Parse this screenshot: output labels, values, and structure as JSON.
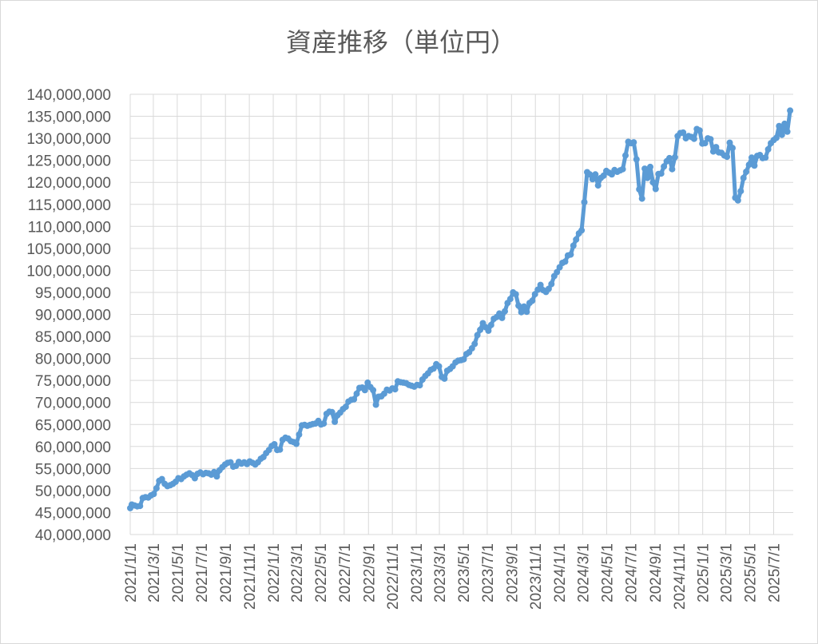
{
  "chart_data": {
    "type": "line",
    "title": "資産推移（単位円）",
    "xlabel": "",
    "ylabel": "",
    "ylim": [
      40000000,
      140000000
    ],
    "y_tick_step": 5000000,
    "y_tick_labels": [
      "40,000,000",
      "45,000,000",
      "50,000,000",
      "55,000,000",
      "60,000,000",
      "65,000,000",
      "70,000,000",
      "75,000,000",
      "80,000,000",
      "85,000,000",
      "90,000,000",
      "95,000,000",
      "100,000,000",
      "105,000,000",
      "110,000,000",
      "115,000,000",
      "120,000,000",
      "125,000,000",
      "130,000,000",
      "135,000,000",
      "140,000,000"
    ],
    "xlim": [
      "2021-01-01",
      "2025-08-20"
    ],
    "x_tick_labels": [
      "2021/1/1",
      "2021/3/1",
      "2021/5/1",
      "2021/7/1",
      "2021/9/1",
      "2021/11/1",
      "2022/1/1",
      "2022/3/1",
      "2022/5/1",
      "2022/7/1",
      "2022/9/1",
      "2022/11/1",
      "2023/1/1",
      "2023/3/1",
      "2023/5/1",
      "2023/7/1",
      "2023/9/1",
      "2023/11/1",
      "2024/1/1",
      "2024/3/1",
      "2024/5/1",
      "2024/7/1",
      "2024/9/1",
      "2024/11/1",
      "2025/1/1",
      "2025/3/1",
      "2025/5/1",
      "2025/7/1"
    ],
    "grid": true,
    "legend": "none",
    "series": [
      {
        "color": "#5b9bd5",
        "points": [
          [
            "2021-01-01",
            46000000
          ],
          [
            "2021-01-05",
            46800000
          ],
          [
            "2021-01-12",
            46600000
          ],
          [
            "2021-01-19",
            46400000
          ],
          [
            "2021-01-26",
            46500000
          ],
          [
            "2021-02-02",
            48300000
          ],
          [
            "2021-02-09",
            48500000
          ],
          [
            "2021-02-16",
            48400000
          ],
          [
            "2021-02-23",
            48900000
          ],
          [
            "2021-03-02",
            49200000
          ],
          [
            "2021-03-09",
            50500000
          ],
          [
            "2021-03-16",
            52200000
          ],
          [
            "2021-03-23",
            52600000
          ],
          [
            "2021-03-30",
            51500000
          ],
          [
            "2021-04-06",
            51000000
          ],
          [
            "2021-04-13",
            51200000
          ],
          [
            "2021-04-20",
            51500000
          ],
          [
            "2021-04-27",
            52000000
          ],
          [
            "2021-05-04",
            52800000
          ],
          [
            "2021-05-11",
            52600000
          ],
          [
            "2021-05-18",
            53200000
          ],
          [
            "2021-05-25",
            53600000
          ],
          [
            "2021-06-01",
            53900000
          ],
          [
            "2021-06-08",
            53500000
          ],
          [
            "2021-06-15",
            52800000
          ],
          [
            "2021-06-22",
            53800000
          ],
          [
            "2021-06-29",
            54100000
          ],
          [
            "2021-07-06",
            53700000
          ],
          [
            "2021-07-13",
            54000000
          ],
          [
            "2021-07-20",
            53900000
          ],
          [
            "2021-07-27",
            53600000
          ],
          [
            "2021-08-03",
            54200000
          ],
          [
            "2021-08-10",
            53200000
          ],
          [
            "2021-08-17",
            54600000
          ],
          [
            "2021-08-24",
            55300000
          ],
          [
            "2021-08-31",
            55900000
          ],
          [
            "2021-09-07",
            56300000
          ],
          [
            "2021-09-14",
            56400000
          ],
          [
            "2021-09-21",
            55400000
          ],
          [
            "2021-09-28",
            55600000
          ],
          [
            "2021-10-05",
            56500000
          ],
          [
            "2021-10-12",
            56100000
          ],
          [
            "2021-10-19",
            56400000
          ],
          [
            "2021-10-26",
            56000000
          ],
          [
            "2021-11-02",
            56600000
          ],
          [
            "2021-11-09",
            56300000
          ],
          [
            "2021-11-16",
            55900000
          ],
          [
            "2021-11-23",
            56400000
          ],
          [
            "2021-11-30",
            57200000
          ],
          [
            "2021-12-07",
            57600000
          ],
          [
            "2021-12-14",
            58500000
          ],
          [
            "2021-12-21",
            59200000
          ],
          [
            "2021-12-28",
            60100000
          ],
          [
            "2022-01-04",
            60500000
          ],
          [
            "2022-01-11",
            59200000
          ],
          [
            "2022-01-18",
            59300000
          ],
          [
            "2022-01-25",
            61500000
          ],
          [
            "2022-02-01",
            62000000
          ],
          [
            "2022-02-08",
            61800000
          ],
          [
            "2022-02-15",
            61200000
          ],
          [
            "2022-02-22",
            61000000
          ],
          [
            "2022-03-01",
            60600000
          ],
          [
            "2022-03-08",
            62700000
          ],
          [
            "2022-03-15",
            64800000
          ],
          [
            "2022-03-22",
            64900000
          ],
          [
            "2022-03-29",
            64700000
          ],
          [
            "2022-04-05",
            64900000
          ],
          [
            "2022-04-12",
            65100000
          ],
          [
            "2022-04-19",
            65200000
          ],
          [
            "2022-04-26",
            65800000
          ],
          [
            "2022-05-03",
            65000000
          ],
          [
            "2022-05-10",
            65200000
          ],
          [
            "2022-05-17",
            67400000
          ],
          [
            "2022-05-24",
            67900000
          ],
          [
            "2022-05-31",
            67800000
          ],
          [
            "2022-06-07",
            65600000
          ],
          [
            "2022-06-14",
            67100000
          ],
          [
            "2022-06-21",
            67700000
          ],
          [
            "2022-06-28",
            68500000
          ],
          [
            "2022-07-05",
            69000000
          ],
          [
            "2022-07-12",
            70200000
          ],
          [
            "2022-07-19",
            70600000
          ],
          [
            "2022-07-26",
            70700000
          ],
          [
            "2022-08-02",
            72000000
          ],
          [
            "2022-08-09",
            73300000
          ],
          [
            "2022-08-16",
            73400000
          ],
          [
            "2022-08-23",
            72800000
          ],
          [
            "2022-08-30",
            74500000
          ],
          [
            "2022-09-06",
            73500000
          ],
          [
            "2022-09-13",
            72800000
          ],
          [
            "2022-09-20",
            69500000
          ],
          [
            "2022-09-27",
            71300000
          ],
          [
            "2022-10-04",
            71400000
          ],
          [
            "2022-10-11",
            72000000
          ],
          [
            "2022-10-18",
            72900000
          ],
          [
            "2022-10-25",
            72700000
          ],
          [
            "2022-11-01",
            73200000
          ],
          [
            "2022-11-08",
            73000000
          ],
          [
            "2022-11-15",
            74800000
          ],
          [
            "2022-11-22",
            74600000
          ],
          [
            "2022-11-29",
            74500000
          ],
          [
            "2022-12-06",
            74400000
          ],
          [
            "2022-12-13",
            74000000
          ],
          [
            "2022-12-20",
            73800000
          ],
          [
            "2022-12-27",
            73600000
          ],
          [
            "2023-01-03",
            74000000
          ],
          [
            "2023-01-10",
            73900000
          ],
          [
            "2023-01-17",
            75200000
          ],
          [
            "2023-01-24",
            76000000
          ],
          [
            "2023-01-31",
            76600000
          ],
          [
            "2023-02-07",
            77400000
          ],
          [
            "2023-02-14",
            77700000
          ],
          [
            "2023-02-21",
            78700000
          ],
          [
            "2023-02-28",
            78200000
          ],
          [
            "2023-03-07",
            75800000
          ],
          [
            "2023-03-14",
            75400000
          ],
          [
            "2023-03-21",
            77200000
          ],
          [
            "2023-03-28",
            77600000
          ],
          [
            "2023-04-04",
            78200000
          ],
          [
            "2023-04-11",
            79100000
          ],
          [
            "2023-04-18",
            79500000
          ],
          [
            "2023-04-25",
            79600000
          ],
          [
            "2023-05-02",
            79800000
          ],
          [
            "2023-05-09",
            81000000
          ],
          [
            "2023-05-16",
            81400000
          ],
          [
            "2023-05-23",
            82300000
          ],
          [
            "2023-05-30",
            83300000
          ],
          [
            "2023-06-06",
            85300000
          ],
          [
            "2023-06-13",
            86500000
          ],
          [
            "2023-06-20",
            88000000
          ],
          [
            "2023-06-27",
            87100000
          ],
          [
            "2023-07-04",
            86300000
          ],
          [
            "2023-07-11",
            87600000
          ],
          [
            "2023-07-18",
            89000000
          ],
          [
            "2023-07-25",
            89400000
          ],
          [
            "2023-08-01",
            90200000
          ],
          [
            "2023-08-08",
            89200000
          ],
          [
            "2023-08-15",
            90700000
          ],
          [
            "2023-08-22",
            92600000
          ],
          [
            "2023-08-29",
            93500000
          ],
          [
            "2023-09-05",
            95000000
          ],
          [
            "2023-09-12",
            94600000
          ],
          [
            "2023-09-19",
            92000000
          ],
          [
            "2023-09-26",
            90500000
          ],
          [
            "2023-10-03",
            91800000
          ],
          [
            "2023-10-10",
            90600000
          ],
          [
            "2023-10-17",
            92600000
          ],
          [
            "2023-10-24",
            93100000
          ],
          [
            "2023-10-31",
            94600000
          ],
          [
            "2023-11-07",
            95600000
          ],
          [
            "2023-11-14",
            96700000
          ],
          [
            "2023-11-21",
            95500000
          ],
          [
            "2023-11-28",
            95100000
          ],
          [
            "2023-12-05",
            95800000
          ],
          [
            "2023-12-12",
            96900000
          ],
          [
            "2023-12-19",
            98700000
          ],
          [
            "2023-12-26",
            99600000
          ],
          [
            "2024-01-02",
            100700000
          ],
          [
            "2024-01-09",
            101700000
          ],
          [
            "2024-01-16",
            102000000
          ],
          [
            "2024-01-23",
            103400000
          ],
          [
            "2024-01-30",
            103600000
          ],
          [
            "2024-02-06",
            105600000
          ],
          [
            "2024-02-13",
            107000000
          ],
          [
            "2024-02-20",
            108400000
          ],
          [
            "2024-02-27",
            109100000
          ],
          [
            "2024-03-05",
            115500000
          ],
          [
            "2024-03-12",
            122300000
          ],
          [
            "2024-03-19",
            121800000
          ],
          [
            "2024-03-26",
            120700000
          ],
          [
            "2024-04-02",
            121800000
          ],
          [
            "2024-04-09",
            119300000
          ],
          [
            "2024-04-16",
            121000000
          ],
          [
            "2024-04-23",
            121500000
          ],
          [
            "2024-04-30",
            122600000
          ],
          [
            "2024-05-07",
            122200000
          ],
          [
            "2024-05-14",
            121800000
          ],
          [
            "2024-05-21",
            122800000
          ],
          [
            "2024-05-28",
            122400000
          ],
          [
            "2024-06-04",
            122700000
          ],
          [
            "2024-06-11",
            123000000
          ],
          [
            "2024-06-18",
            126100000
          ],
          [
            "2024-06-25",
            129200000
          ],
          [
            "2024-07-02",
            128900000
          ],
          [
            "2024-07-09",
            129100000
          ],
          [
            "2024-07-16",
            125200000
          ],
          [
            "2024-07-23",
            118400000
          ],
          [
            "2024-07-30",
            116300000
          ],
          [
            "2024-08-06",
            123100000
          ],
          [
            "2024-08-13",
            121000000
          ],
          [
            "2024-08-20",
            123500000
          ],
          [
            "2024-08-27",
            120000000
          ],
          [
            "2024-09-03",
            118500000
          ],
          [
            "2024-09-10",
            121900000
          ],
          [
            "2024-09-17",
            122000000
          ],
          [
            "2024-09-24",
            123600000
          ],
          [
            "2024-10-01",
            124800000
          ],
          [
            "2024-10-08",
            125500000
          ],
          [
            "2024-10-15",
            123000000
          ],
          [
            "2024-10-22",
            125700000
          ],
          [
            "2024-10-29",
            130500000
          ],
          [
            "2024-11-05",
            131200000
          ],
          [
            "2024-11-12",
            131300000
          ],
          [
            "2024-11-19",
            130000000
          ],
          [
            "2024-11-26",
            130500000
          ],
          [
            "2024-12-03",
            130300000
          ],
          [
            "2024-12-10",
            129900000
          ],
          [
            "2024-12-17",
            132100000
          ],
          [
            "2024-12-24",
            131800000
          ],
          [
            "2024-12-31",
            128800000
          ],
          [
            "2025-01-07",
            128900000
          ],
          [
            "2025-01-14",
            130000000
          ],
          [
            "2025-01-21",
            129800000
          ],
          [
            "2025-01-28",
            127000000
          ],
          [
            "2025-02-04",
            128000000
          ],
          [
            "2025-02-11",
            126800000
          ],
          [
            "2025-02-18",
            126700000
          ],
          [
            "2025-02-25",
            126100000
          ],
          [
            "2025-03-04",
            125800000
          ],
          [
            "2025-03-11",
            129000000
          ],
          [
            "2025-03-18",
            127800000
          ],
          [
            "2025-03-25",
            116500000
          ],
          [
            "2025-04-01",
            115900000
          ],
          [
            "2025-04-08",
            118000000
          ],
          [
            "2025-04-15",
            121000000
          ],
          [
            "2025-04-22",
            122400000
          ],
          [
            "2025-04-29",
            124000000
          ],
          [
            "2025-05-06",
            125600000
          ],
          [
            "2025-05-13",
            123800000
          ],
          [
            "2025-05-20",
            126000000
          ],
          [
            "2025-05-27",
            126200000
          ],
          [
            "2025-06-03",
            125500000
          ],
          [
            "2025-06-10",
            125600000
          ],
          [
            "2025-06-17",
            127500000
          ],
          [
            "2025-06-24",
            128900000
          ],
          [
            "2025-07-01",
            129600000
          ],
          [
            "2025-07-08",
            130100000
          ],
          [
            "2025-07-15",
            132800000
          ],
          [
            "2025-07-22",
            130800000
          ],
          [
            "2025-07-29",
            133300000
          ],
          [
            "2025-08-05",
            131500000
          ],
          [
            "2025-08-12",
            136300000
          ]
        ]
      }
    ]
  }
}
